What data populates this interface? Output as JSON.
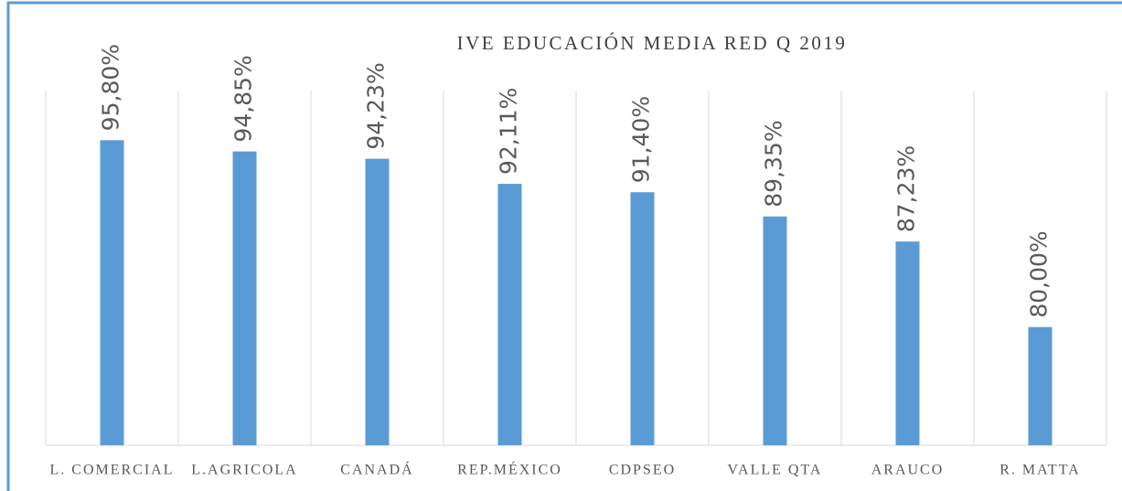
{
  "chart_data": {
    "type": "bar",
    "title": "IVE EDUCACIÓN MEDIA RED Q 2019",
    "categories": [
      "L. COMERCIAL",
      "L.AGRICOLA",
      "CANADÁ",
      "REP.MÉXICO",
      "CDPSEO",
      "VALLE QTA",
      "ARAUCO",
      "R. MATTA"
    ],
    "values": [
      95.8,
      94.85,
      94.23,
      92.11,
      91.4,
      89.35,
      87.23,
      80.0
    ],
    "value_labels": [
      "95,80%",
      "94,85%",
      "94,23%",
      "92,11%",
      "91,40%",
      "89,35%",
      "87,23%",
      "80,00%"
    ],
    "color": "#5b9bd5",
    "ylim": [
      70,
      100
    ],
    "grid": true
  }
}
